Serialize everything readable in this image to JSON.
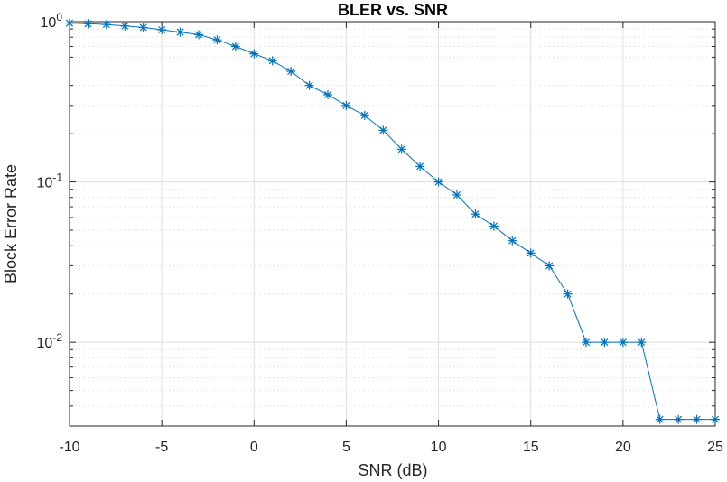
{
  "chart_data": {
    "type": "line",
    "title": "BLER vs. SNR",
    "xlabel": "SNR (dB)",
    "ylabel": "Block Error Rate",
    "yscale": "log",
    "xlim": [
      -10,
      25
    ],
    "ylim": [
      0.003,
      1
    ],
    "grid": true,
    "minor_grid": true,
    "x_ticks": [
      -10,
      -5,
      0,
      5,
      10,
      15,
      20,
      25
    ],
    "x_tick_labels": [
      "-10",
      "-5",
      "0",
      "5",
      "10",
      "15",
      "20",
      "25"
    ],
    "y_ticks": [
      0.01,
      0.1,
      1
    ],
    "y_tick_labels": [
      {
        "base": "10",
        "exp": "-2"
      },
      {
        "base": "10",
        "exp": "-1"
      },
      {
        "base": "10",
        "exp": "0"
      }
    ],
    "marker": "asterisk",
    "color": "#0072bd",
    "series": [
      {
        "x": [
          -10,
          -9,
          -8,
          -7,
          -6,
          -5,
          -4,
          -3,
          -2,
          -1,
          0,
          1,
          2,
          3,
          4,
          5,
          6,
          7,
          8,
          9,
          10,
          11,
          12,
          13,
          14,
          15,
          16,
          17,
          18,
          19,
          20,
          21,
          22,
          23,
          24,
          25
        ],
        "values": [
          0.98,
          0.97,
          0.96,
          0.94,
          0.92,
          0.89,
          0.86,
          0.83,
          0.77,
          0.7,
          0.63,
          0.57,
          0.49,
          0.4,
          0.35,
          0.3,
          0.26,
          0.21,
          0.16,
          0.125,
          0.1,
          0.083,
          0.063,
          0.053,
          0.043,
          0.036,
          0.03,
          0.02,
          0.01,
          0.01,
          0.01,
          0.01,
          0.0033,
          0.0033,
          0.0033,
          0.0033
        ]
      }
    ]
  }
}
